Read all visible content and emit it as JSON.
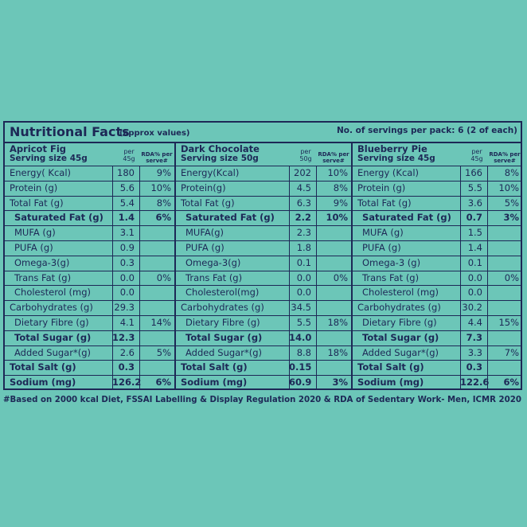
{
  "header": {
    "title": "Nutritional Facts",
    "note": "(approx values)",
    "servings": "No. of servings per pack: 6 (2 of each)"
  },
  "panels": [
    {
      "name": "Apricot Fig",
      "serving": "Serving size 45g",
      "per": "per 45g",
      "rda": "RDA% per serve#",
      "rows": [
        [
          "Energy( Kcal)",
          "180",
          "9%"
        ],
        [
          "Protein (g)",
          "5.6",
          "10%"
        ],
        [
          "Total Fat (g)",
          "5.4",
          "8%"
        ],
        [
          "Saturated Fat (g)",
          "1.4",
          "6%"
        ],
        [
          "MUFA (g)",
          "3.1",
          null
        ],
        [
          "PUFA (g)",
          "0.9",
          null
        ],
        [
          "Omega-3(g)",
          "0.3",
          null
        ],
        [
          "Trans Fat (g)",
          "0.0",
          "0%"
        ],
        [
          "Cholesterol (mg)",
          "0.0",
          null
        ],
        [
          "Carbohydrates (g)",
          "29.3",
          null
        ],
        [
          "Dietary Fibre (g)",
          "4.1",
          "14%"
        ],
        [
          "Total Sugar (g)",
          "12.3",
          null
        ],
        [
          "Added Sugar*(g)",
          "2.6",
          "5%"
        ],
        [
          "Total Salt (g)",
          "0.3",
          null
        ],
        [
          "Sodium (mg)",
          "126.2",
          "6%"
        ]
      ]
    },
    {
      "name": "Dark Chocolate",
      "serving": "Serving size 50g",
      "per": "per 50g",
      "rda": "RDA% per serve#",
      "rows": [
        [
          "Energy(Kcal)",
          "202",
          "10%"
        ],
        [
          "Protein(g)",
          "4.5",
          "8%"
        ],
        [
          "Total Fat (g)",
          "6.3",
          "9%"
        ],
        [
          "Saturated Fat (g)",
          "2.2",
          "10%"
        ],
        [
          "MUFA(g)",
          "2.3",
          null
        ],
        [
          "PUFA (g)",
          "1.8",
          null
        ],
        [
          "Omega-3(g)",
          "0.1",
          null
        ],
        [
          "Trans Fat (g)",
          "0.0",
          "0%"
        ],
        [
          "Cholesterol(mg)",
          "0.0",
          null
        ],
        [
          "Carbohydrates (g)",
          "34.5",
          null
        ],
        [
          "Dietary Fibre (g)",
          "5.5",
          "18%"
        ],
        [
          "Total Sugar (g)",
          "14.0",
          null
        ],
        [
          "Added Sugar*(g)",
          "8.8",
          "18%"
        ],
        [
          "Total Salt (g)",
          "0.15",
          null
        ],
        [
          "Sodium (mg)",
          "60.9",
          "3%"
        ]
      ]
    },
    {
      "name": "Blueberry Pie",
      "serving": "Serving size 45g",
      "per": "per 45g",
      "rda": "RDA% per serve#",
      "rows": [
        [
          "Energy (Kcal)",
          "166",
          "8%"
        ],
        [
          "Protein (g)",
          "5.5",
          "10%"
        ],
        [
          "Total Fat (g)",
          "3.6",
          "5%"
        ],
        [
          "Saturated Fat (g)",
          "0.7",
          "3%"
        ],
        [
          "MUFA (g)",
          "1.5",
          null
        ],
        [
          "PUFA (g)",
          "1.4",
          null
        ],
        [
          "Omega-3 (g)",
          "0.1",
          null
        ],
        [
          "Trans Fat (g)",
          "0.0",
          "0%"
        ],
        [
          "Cholesterol (mg)",
          "0.0",
          null
        ],
        [
          "Carbohydrates (g)",
          "30.2",
          null
        ],
        [
          "Dietary Fibre (g)",
          "4.4",
          "15%"
        ],
        [
          "Total Sugar (g)",
          "7.3",
          null
        ],
        [
          "Added Sugar*(g)",
          "3.3",
          "7%"
        ],
        [
          "Total Salt (g)",
          "0.3",
          null
        ],
        [
          "Sodium (mg)",
          "122.6",
          "6%"
        ]
      ]
    }
  ],
  "footer": "#Based on 2000 kcal Diet, FSSAI Labelling & Display Regulation 2020 & RDA of Sedentary Work- Men, ICMR 2020"
}
